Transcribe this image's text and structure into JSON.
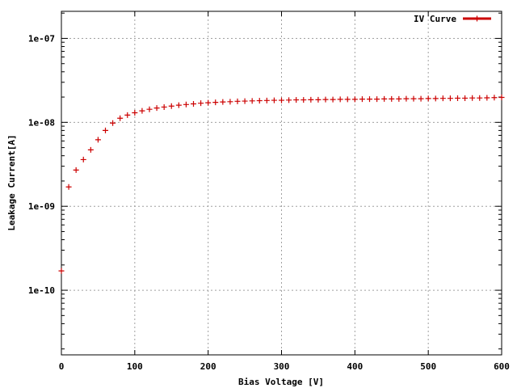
{
  "chart_data": {
    "type": "scatter",
    "title": "",
    "xlabel": "Bias Voltage [V]",
    "ylabel": "Leakage Current[A]",
    "xlim": [
      0,
      600
    ],
    "ylim": [
      1.7e-11,
      2.1e-07
    ],
    "yscale": "log",
    "grid": true,
    "legend_position": "top-right",
    "x_ticks": [
      {
        "value": 0,
        "label": "0"
      },
      {
        "value": 100,
        "label": "100"
      },
      {
        "value": 200,
        "label": "200"
      },
      {
        "value": 300,
        "label": "300"
      },
      {
        "value": 400,
        "label": "400"
      },
      {
        "value": 500,
        "label": "500"
      },
      {
        "value": 600,
        "label": "600"
      }
    ],
    "y_ticks": [
      {
        "value": 1e-10,
        "label": "1e-10"
      },
      {
        "value": 1e-09,
        "label": "1e-09"
      },
      {
        "value": 1e-08,
        "label": "1e-08"
      },
      {
        "value": 1e-07,
        "label": "1e-07"
      }
    ],
    "series": [
      {
        "name": "IV Curve",
        "color": "#cc0000",
        "marker": "plus",
        "x": [
          0,
          10,
          20,
          30,
          40,
          50,
          60,
          70,
          80,
          90,
          100,
          110,
          120,
          130,
          140,
          150,
          160,
          170,
          180,
          190,
          200,
          210,
          220,
          230,
          240,
          250,
          260,
          270,
          280,
          290,
          300,
          310,
          320,
          330,
          340,
          350,
          360,
          370,
          380,
          390,
          400,
          410,
          420,
          430,
          440,
          450,
          460,
          470,
          480,
          490,
          500,
          510,
          520,
          530,
          540,
          550,
          560,
          570,
          580,
          590,
          600
        ],
        "y": [
          1.7e-10,
          1.7e-09,
          2.7e-09,
          3.6e-09,
          4.7e-09,
          6.2e-09,
          8e-09,
          9.8e-09,
          1.12e-08,
          1.22e-08,
          1.3e-08,
          1.37e-08,
          1.43e-08,
          1.48e-08,
          1.52e-08,
          1.56e-08,
          1.6e-08,
          1.63e-08,
          1.66e-08,
          1.69e-08,
          1.71e-08,
          1.73e-08,
          1.75e-08,
          1.76e-08,
          1.78e-08,
          1.79e-08,
          1.8e-08,
          1.81e-08,
          1.82e-08,
          1.83e-08,
          1.83e-08,
          1.84e-08,
          1.85e-08,
          1.85e-08,
          1.86e-08,
          1.86e-08,
          1.87e-08,
          1.87e-08,
          1.88e-08,
          1.88e-08,
          1.88e-08,
          1.89e-08,
          1.89e-08,
          1.89e-08,
          1.9e-08,
          1.9e-08,
          1.9e-08,
          1.91e-08,
          1.91e-08,
          1.91e-08,
          1.92e-08,
          1.92e-08,
          1.93e-08,
          1.93e-08,
          1.94e-08,
          1.94e-08,
          1.95e-08,
          1.95e-08,
          1.96e-08,
          1.97e-08,
          1.98e-08
        ]
      }
    ]
  }
}
